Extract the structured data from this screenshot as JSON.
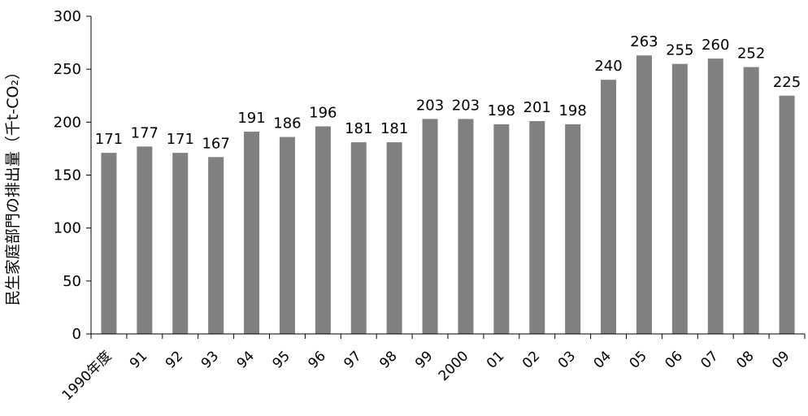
{
  "chart_data": {
    "type": "bar",
    "title": "",
    "xlabel": "",
    "ylabel": "民生家庭部門の排出量（千t-CO₂）",
    "ylim": [
      0,
      300
    ],
    "yticks": [
      0,
      50,
      100,
      150,
      200,
      250,
      300
    ],
    "grid": false,
    "legend": "none",
    "categories": [
      "1990年度",
      "91",
      "92",
      "93",
      "94",
      "95",
      "96",
      "97",
      "98",
      "99",
      "2000",
      "01",
      "02",
      "03",
      "04",
      "05",
      "06",
      "07",
      "08",
      "09"
    ],
    "values": [
      171,
      177,
      171,
      167,
      191,
      186,
      196,
      181,
      181,
      203,
      203,
      198,
      201,
      198,
      240,
      263,
      255,
      260,
      252,
      225
    ],
    "colors": {
      "bar": "#808080",
      "axis": "#000000"
    }
  }
}
